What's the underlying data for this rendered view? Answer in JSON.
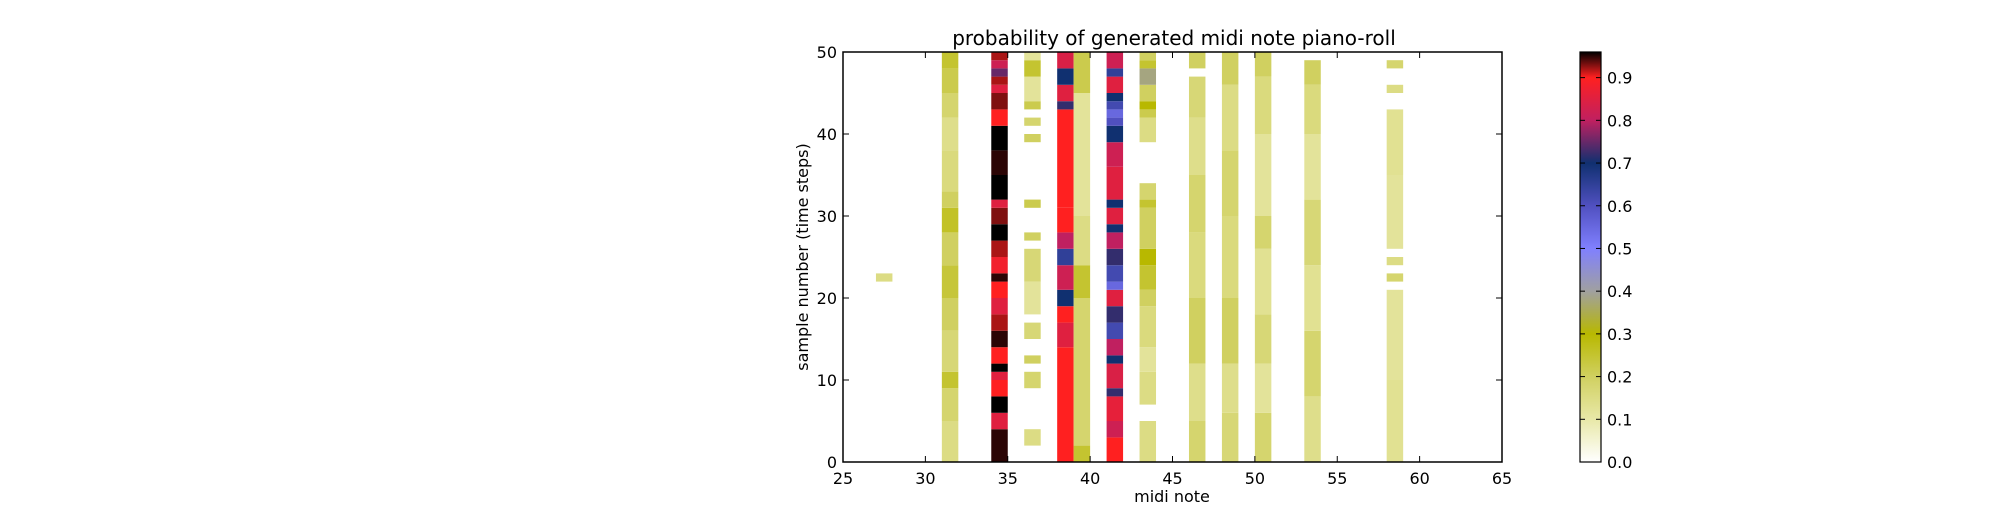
{
  "chart_data": {
    "type": "heatmap",
    "title": "probability of generated midi note piano-roll",
    "xlabel": "midi note",
    "ylabel": "sample number (time steps)",
    "xlim": [
      25,
      65
    ],
    "ylim": [
      0,
      50
    ],
    "x_ticks": [
      "25",
      "30",
      "35",
      "40",
      "45",
      "50",
      "55",
      "60",
      "65"
    ],
    "y_ticks": [
      "0",
      "10",
      "20",
      "30",
      "40",
      "50"
    ],
    "colorbar": {
      "range": [
        0.0,
        0.96
      ],
      "ticks": [
        "0.0",
        "0.1",
        "0.2",
        "0.3",
        "0.4",
        "0.5",
        "0.6",
        "0.7",
        "0.8",
        "0.9"
      ],
      "colors": [
        {
          "value": 0.0,
          "color": "#ffffff"
        },
        {
          "value": 0.1,
          "color": "#e8e8a8"
        },
        {
          "value": 0.2,
          "color": "#d0d060"
        },
        {
          "value": 0.3,
          "color": "#b8b800"
        },
        {
          "value": 0.4,
          "color": "#a0a0a0"
        },
        {
          "value": 0.5,
          "color": "#8080ff"
        },
        {
          "value": 0.6,
          "color": "#5050c0"
        },
        {
          "value": 0.7,
          "color": "#103070"
        },
        {
          "value": 0.8,
          "color": "#c02060"
        },
        {
          "value": 0.9,
          "color": "#ff2020"
        },
        {
          "value": 0.96,
          "color": "#000000"
        }
      ]
    },
    "columns": [
      {
        "note": 27,
        "segments": [
          {
            "y0": 22,
            "y1": 23,
            "p": 0.15
          }
        ]
      },
      {
        "note": 31,
        "segments": [
          {
            "y0": 0,
            "y1": 5,
            "p": 0.15
          },
          {
            "y0": 5,
            "y1": 9,
            "p": 0.18
          },
          {
            "y0": 9,
            "y1": 11,
            "p": 0.25
          },
          {
            "y0": 11,
            "y1": 16,
            "p": 0.17
          },
          {
            "y0": 16,
            "y1": 20,
            "p": 0.2
          },
          {
            "y0": 20,
            "y1": 24,
            "p": 0.24
          },
          {
            "y0": 24,
            "y1": 28,
            "p": 0.2
          },
          {
            "y0": 28,
            "y1": 31,
            "p": 0.26
          },
          {
            "y0": 31,
            "y1": 33,
            "p": 0.2
          },
          {
            "y0": 33,
            "y1": 38,
            "p": 0.16
          },
          {
            "y0": 38,
            "y1": 42,
            "p": 0.14
          },
          {
            "y0": 42,
            "y1": 45,
            "p": 0.18
          },
          {
            "y0": 45,
            "y1": 48,
            "p": 0.22
          },
          {
            "y0": 48,
            "y1": 50,
            "p": 0.25
          }
        ]
      },
      {
        "note": 34,
        "segments": [
          {
            "y0": 0,
            "y1": 4,
            "p": 0.95
          },
          {
            "y0": 4,
            "y1": 6,
            "p": 0.85
          },
          {
            "y0": 6,
            "y1": 8,
            "p": 0.96
          },
          {
            "y0": 8,
            "y1": 10,
            "p": 0.9
          },
          {
            "y0": 10,
            "y1": 11,
            "p": 0.85
          },
          {
            "y0": 11,
            "y1": 12,
            "p": 0.96
          },
          {
            "y0": 12,
            "y1": 14,
            "p": 0.9
          },
          {
            "y0": 14,
            "y1": 16,
            "p": 0.95
          },
          {
            "y0": 16,
            "y1": 18,
            "p": 0.92
          },
          {
            "y0": 18,
            "y1": 20,
            "p": 0.85
          },
          {
            "y0": 20,
            "y1": 22,
            "p": 0.9
          },
          {
            "y0": 22,
            "y1": 23,
            "p": 0.95
          },
          {
            "y0": 23,
            "y1": 25,
            "p": 0.88
          },
          {
            "y0": 25,
            "y1": 27,
            "p": 0.92
          },
          {
            "y0": 27,
            "y1": 29,
            "p": 0.96
          },
          {
            "y0": 29,
            "y1": 31,
            "p": 0.93
          },
          {
            "y0": 31,
            "y1": 32,
            "p": 0.85
          },
          {
            "y0": 32,
            "y1": 35,
            "p": 0.96
          },
          {
            "y0": 35,
            "y1": 38,
            "p": 0.95
          },
          {
            "y0": 38,
            "y1": 41,
            "p": 0.96
          },
          {
            "y0": 41,
            "y1": 43,
            "p": 0.9
          },
          {
            "y0": 43,
            "y1": 45,
            "p": 0.93
          },
          {
            "y0": 45,
            "y1": 46,
            "p": 0.85
          },
          {
            "y0": 46,
            "y1": 47,
            "p": 0.92
          },
          {
            "y0": 47,
            "y1": 48,
            "p": 0.75
          },
          {
            "y0": 48,
            "y1": 49,
            "p": 0.82
          },
          {
            "y0": 49,
            "y1": 50,
            "p": 0.92
          }
        ]
      },
      {
        "note": 36,
        "segments": [
          {
            "y0": 2,
            "y1": 4,
            "p": 0.15
          },
          {
            "y0": 9,
            "y1": 11,
            "p": 0.18
          },
          {
            "y0": 12,
            "y1": 13,
            "p": 0.2
          },
          {
            "y0": 15,
            "y1": 17,
            "p": 0.17
          },
          {
            "y0": 18,
            "y1": 22,
            "p": 0.12
          },
          {
            "y0": 22,
            "y1": 26,
            "p": 0.17
          },
          {
            "y0": 27,
            "y1": 28,
            "p": 0.2
          },
          {
            "y0": 31,
            "y1": 32,
            "p": 0.22
          },
          {
            "y0": 39,
            "y1": 40,
            "p": 0.2
          },
          {
            "y0": 41,
            "y1": 42,
            "p": 0.18
          },
          {
            "y0": 43,
            "y1": 44,
            "p": 0.22
          },
          {
            "y0": 44,
            "y1": 47,
            "p": 0.12
          },
          {
            "y0": 47,
            "y1": 49,
            "p": 0.25
          },
          {
            "y0": 49,
            "y1": 50,
            "p": 0.12
          }
        ]
      },
      {
        "note": 38,
        "segments": [
          {
            "y0": 0,
            "y1": 14,
            "p": 0.9
          },
          {
            "y0": 14,
            "y1": 17,
            "p": 0.85
          },
          {
            "y0": 17,
            "y1": 19,
            "p": 0.9
          },
          {
            "y0": 19,
            "y1": 21,
            "p": 0.7
          },
          {
            "y0": 21,
            "y1": 24,
            "p": 0.82
          },
          {
            "y0": 24,
            "y1": 26,
            "p": 0.65
          },
          {
            "y0": 26,
            "y1": 28,
            "p": 0.8
          },
          {
            "y0": 28,
            "y1": 31,
            "p": 0.9
          },
          {
            "y0": 31,
            "y1": 43,
            "p": 0.9
          },
          {
            "y0": 43,
            "y1": 44,
            "p": 0.72
          },
          {
            "y0": 44,
            "y1": 46,
            "p": 0.85
          },
          {
            "y0": 46,
            "y1": 48,
            "p": 0.7
          },
          {
            "y0": 48,
            "y1": 50,
            "p": 0.84
          }
        ]
      },
      {
        "note": 39,
        "segments": [
          {
            "y0": 0,
            "y1": 2,
            "p": 0.25
          },
          {
            "y0": 2,
            "y1": 20,
            "p": 0.18
          },
          {
            "y0": 20,
            "y1": 24,
            "p": 0.25
          },
          {
            "y0": 24,
            "y1": 30,
            "p": 0.15
          },
          {
            "y0": 30,
            "y1": 45,
            "p": 0.12
          },
          {
            "y0": 45,
            "y1": 50,
            "p": 0.22
          }
        ]
      },
      {
        "note": 41,
        "segments": [
          {
            "y0": 0,
            "y1": 3,
            "p": 0.9
          },
          {
            "y0": 3,
            "y1": 5,
            "p": 0.82
          },
          {
            "y0": 5,
            "y1": 8,
            "p": 0.86
          },
          {
            "y0": 8,
            "y1": 9,
            "p": 0.72
          },
          {
            "y0": 9,
            "y1": 12,
            "p": 0.84
          },
          {
            "y0": 12,
            "y1": 13,
            "p": 0.7
          },
          {
            "y0": 13,
            "y1": 15,
            "p": 0.8
          },
          {
            "y0": 15,
            "y1": 17,
            "p": 0.62
          },
          {
            "y0": 17,
            "y1": 19,
            "p": 0.72
          },
          {
            "y0": 19,
            "y1": 21,
            "p": 0.85
          },
          {
            "y0": 21,
            "y1": 22,
            "p": 0.55
          },
          {
            "y0": 22,
            "y1": 24,
            "p": 0.62
          },
          {
            "y0": 24,
            "y1": 26,
            "p": 0.72
          },
          {
            "y0": 26,
            "y1": 28,
            "p": 0.8
          },
          {
            "y0": 28,
            "y1": 29,
            "p": 0.7
          },
          {
            "y0": 29,
            "y1": 31,
            "p": 0.85
          },
          {
            "y0": 31,
            "y1": 32,
            "p": 0.7
          },
          {
            "y0": 32,
            "y1": 36,
            "p": 0.85
          },
          {
            "y0": 36,
            "y1": 39,
            "p": 0.82
          },
          {
            "y0": 39,
            "y1": 41,
            "p": 0.7
          },
          {
            "y0": 41,
            "y1": 42,
            "p": 0.6
          },
          {
            "y0": 42,
            "y1": 43,
            "p": 0.55
          },
          {
            "y0": 43,
            "y1": 44,
            "p": 0.62
          },
          {
            "y0": 44,
            "y1": 45,
            "p": 0.7
          },
          {
            "y0": 45,
            "y1": 47,
            "p": 0.85
          },
          {
            "y0": 47,
            "y1": 48,
            "p": 0.65
          },
          {
            "y0": 48,
            "y1": 50,
            "p": 0.82
          }
        ]
      },
      {
        "note": 43,
        "segments": [
          {
            "y0": 0,
            "y1": 5,
            "p": 0.15
          },
          {
            "y0": 7,
            "y1": 11,
            "p": 0.15
          },
          {
            "y0": 11,
            "y1": 14,
            "p": 0.12
          },
          {
            "y0": 14,
            "y1": 19,
            "p": 0.16
          },
          {
            "y0": 19,
            "y1": 21,
            "p": 0.2
          },
          {
            "y0": 21,
            "y1": 24,
            "p": 0.25
          },
          {
            "y0": 24,
            "y1": 26,
            "p": 0.3
          },
          {
            "y0": 26,
            "y1": 31,
            "p": 0.2
          },
          {
            "y0": 31,
            "y1": 32,
            "p": 0.25
          },
          {
            "y0": 32,
            "y1": 34,
            "p": 0.18
          },
          {
            "y0": 39,
            "y1": 42,
            "p": 0.15
          },
          {
            "y0": 42,
            "y1": 43,
            "p": 0.22
          },
          {
            "y0": 43,
            "y1": 44,
            "p": 0.3
          },
          {
            "y0": 44,
            "y1": 46,
            "p": 0.2
          },
          {
            "y0": 46,
            "y1": 48,
            "p": 0.38
          },
          {
            "y0": 48,
            "y1": 49,
            "p": 0.25
          },
          {
            "y0": 49,
            "y1": 50,
            "p": 0.2
          }
        ]
      },
      {
        "note": 46,
        "segments": [
          {
            "y0": 0,
            "y1": 5,
            "p": 0.18
          },
          {
            "y0": 5,
            "y1": 12,
            "p": 0.14
          },
          {
            "y0": 12,
            "y1": 20,
            "p": 0.2
          },
          {
            "y0": 20,
            "y1": 28,
            "p": 0.16
          },
          {
            "y0": 28,
            "y1": 35,
            "p": 0.18
          },
          {
            "y0": 35,
            "y1": 42,
            "p": 0.14
          },
          {
            "y0": 42,
            "y1": 47,
            "p": 0.17
          },
          {
            "y0": 48,
            "y1": 50,
            "p": 0.2
          }
        ]
      },
      {
        "note": 48,
        "segments": [
          {
            "y0": 0,
            "y1": 6,
            "p": 0.17
          },
          {
            "y0": 6,
            "y1": 12,
            "p": 0.14
          },
          {
            "y0": 12,
            "y1": 20,
            "p": 0.2
          },
          {
            "y0": 20,
            "y1": 30,
            "p": 0.16
          },
          {
            "y0": 30,
            "y1": 38,
            "p": 0.18
          },
          {
            "y0": 38,
            "y1": 46,
            "p": 0.15
          },
          {
            "y0": 46,
            "y1": 50,
            "p": 0.2
          }
        ]
      },
      {
        "note": 50,
        "segments": [
          {
            "y0": 0,
            "y1": 6,
            "p": 0.18
          },
          {
            "y0": 6,
            "y1": 12,
            "p": 0.12
          },
          {
            "y0": 12,
            "y1": 18,
            "p": 0.17
          },
          {
            "y0": 18,
            "y1": 26,
            "p": 0.13
          },
          {
            "y0": 26,
            "y1": 30,
            "p": 0.18
          },
          {
            "y0": 30,
            "y1": 40,
            "p": 0.12
          },
          {
            "y0": 40,
            "y1": 47,
            "p": 0.16
          },
          {
            "y0": 47,
            "y1": 50,
            "p": 0.2
          }
        ]
      },
      {
        "note": 53,
        "segments": [
          {
            "y0": 0,
            "y1": 8,
            "p": 0.14
          },
          {
            "y0": 8,
            "y1": 16,
            "p": 0.18
          },
          {
            "y0": 16,
            "y1": 24,
            "p": 0.13
          },
          {
            "y0": 24,
            "y1": 32,
            "p": 0.17
          },
          {
            "y0": 32,
            "y1": 40,
            "p": 0.12
          },
          {
            "y0": 40,
            "y1": 46,
            "p": 0.16
          },
          {
            "y0": 46,
            "y1": 49,
            "p": 0.2
          }
        ]
      },
      {
        "note": 58,
        "segments": [
          {
            "y0": 0,
            "y1": 10,
            "p": 0.13
          },
          {
            "y0": 10,
            "y1": 21,
            "p": 0.12
          },
          {
            "y0": 22,
            "y1": 23,
            "p": 0.18
          },
          {
            "y0": 24,
            "y1": 25,
            "p": 0.15
          },
          {
            "y0": 26,
            "y1": 35,
            "p": 0.12
          },
          {
            "y0": 35,
            "y1": 43,
            "p": 0.13
          },
          {
            "y0": 45,
            "y1": 46,
            "p": 0.15
          },
          {
            "y0": 48,
            "y1": 49,
            "p": 0.18
          }
        ]
      }
    ]
  }
}
